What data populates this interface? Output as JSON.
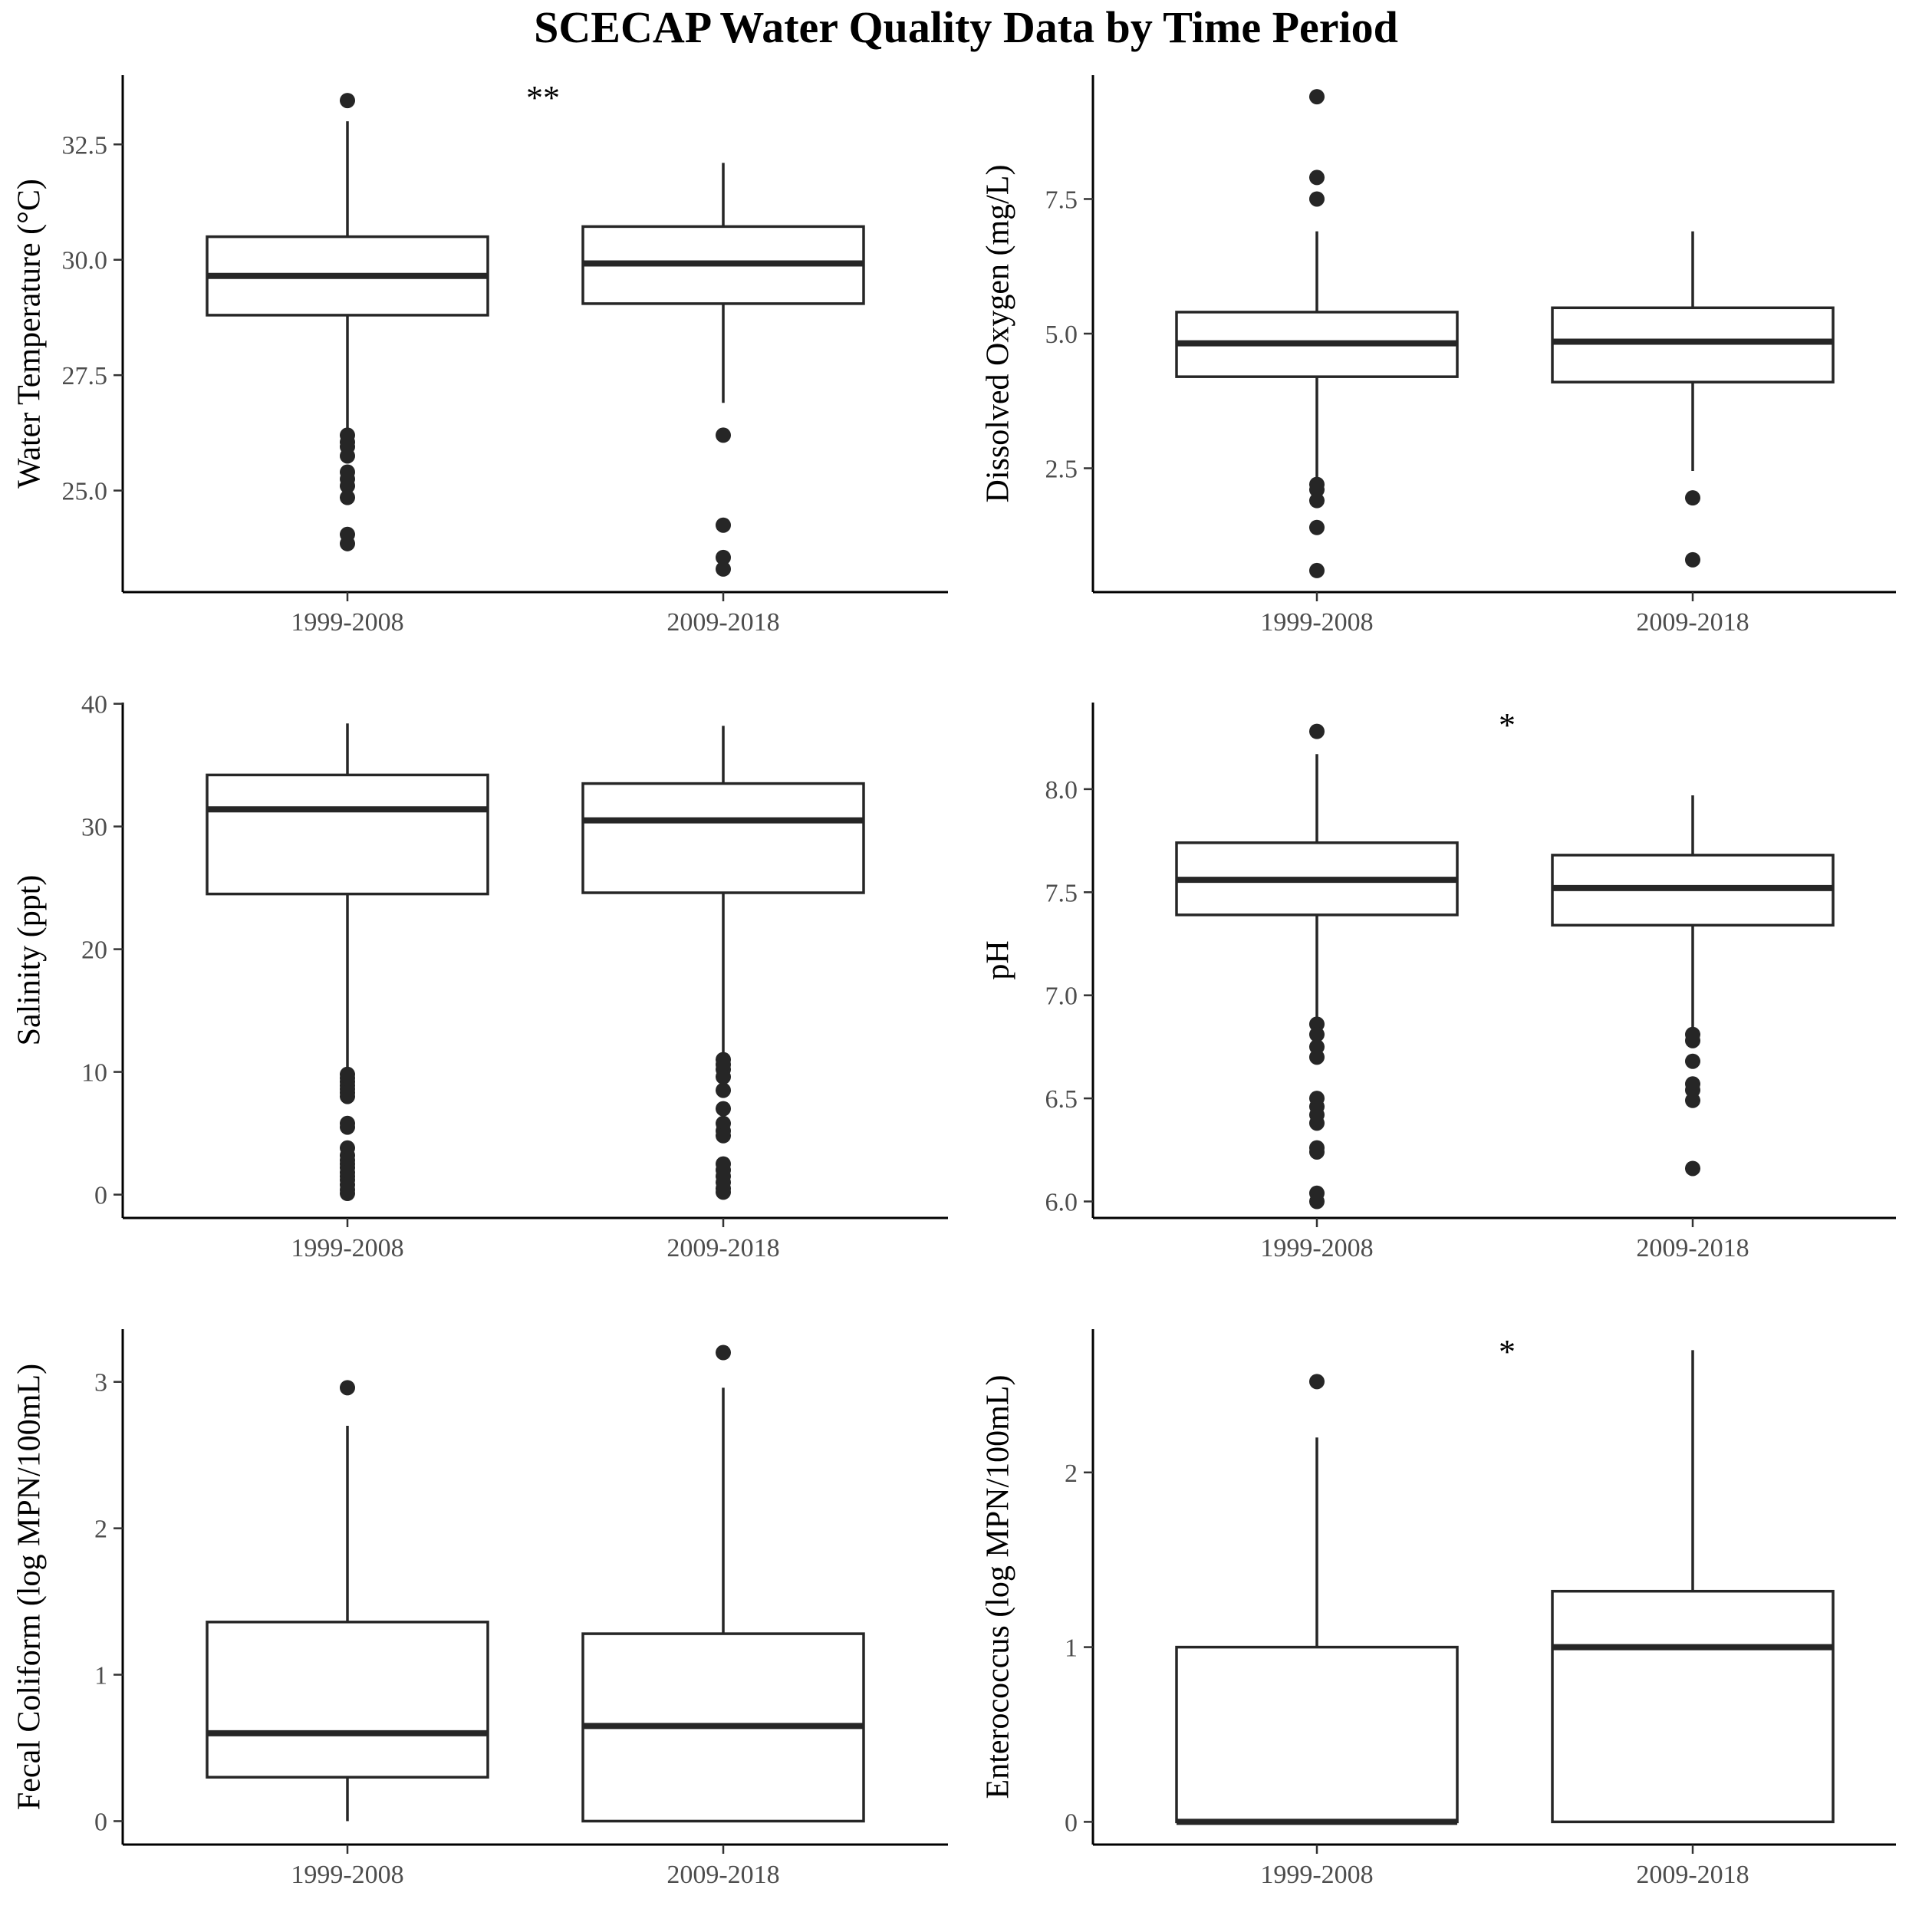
{
  "title": "SCECAP Water Quality Data by Time Period",
  "chart_data": [
    {
      "type": "boxplot",
      "ylabel": "Water Temperature (°C)",
      "categories": [
        "1999-2008",
        "2009-2018"
      ],
      "ylim": [
        22.8,
        34.0
      ],
      "yticks": [
        "25.0",
        "27.5",
        "30.0",
        "32.5"
      ],
      "annotation": "**",
      "boxes": [
        {
          "category": "1999-2008",
          "q1": 28.8,
          "median": 29.65,
          "q3": 30.5,
          "whisker_low": 26.3,
          "whisker_high": 33.0,
          "outliers": [
            33.45,
            26.2,
            26.05,
            25.95,
            25.75,
            25.4,
            25.25,
            25.1,
            24.85,
            24.05,
            23.85
          ]
        },
        {
          "category": "2009-2018",
          "q1": 29.05,
          "median": 29.92,
          "q3": 30.72,
          "whisker_low": 26.9,
          "whisker_high": 32.1,
          "outliers": [
            26.2,
            24.25,
            23.55,
            23.3
          ]
        }
      ]
    },
    {
      "type": "boxplot",
      "ylabel": "Dissolved Oxygen (mg/L)",
      "categories": [
        "1999-2008",
        "2009-2018"
      ],
      "ylim": [
        0.2,
        9.8
      ],
      "yticks": [
        "2.5",
        "5.0",
        "7.5"
      ],
      "annotation": "",
      "boxes": [
        {
          "category": "1999-2008",
          "q1": 4.2,
          "median": 4.82,
          "q3": 5.4,
          "whisker_low": 2.3,
          "whisker_high": 6.9,
          "outliers": [
            9.4,
            7.9,
            7.5,
            2.2,
            2.1,
            1.9,
            1.4,
            0.6
          ]
        },
        {
          "category": "2009-2018",
          "q1": 4.1,
          "median": 4.85,
          "q3": 5.48,
          "whisker_low": 2.45,
          "whisker_high": 6.9,
          "outliers": [
            1.95,
            0.8
          ]
        }
      ]
    },
    {
      "type": "boxplot",
      "ylabel": "Salinity (ppt)",
      "categories": [
        "1999-2008",
        "2009-2018"
      ],
      "ylim": [
        -1.9,
        40.1
      ],
      "yticks": [
        "0",
        "10",
        "20",
        "30",
        "40"
      ],
      "annotation": "",
      "boxes": [
        {
          "category": "1999-2008",
          "q1": 24.5,
          "median": 31.4,
          "q3": 34.2,
          "whisker_low": 10.0,
          "whisker_high": 38.4,
          "outliers": [
            9.8,
            9.5,
            9.2,
            8.9,
            8.6,
            8.3,
            8.0,
            5.8,
            5.5,
            3.8,
            3.2,
            2.8,
            2.5,
            2.2,
            1.8,
            1.5,
            1.2,
            0.8,
            0.4,
            0.1
          ]
        },
        {
          "category": "2009-2018",
          "q1": 24.6,
          "median": 30.5,
          "q3": 33.5,
          "whisker_low": 11.5,
          "whisker_high": 38.2,
          "outliers": [
            11.0,
            10.6,
            10.2,
            9.6,
            8.5,
            7.0,
            5.8,
            5.2,
            4.8,
            2.5,
            2.0,
            1.5,
            1.0,
            0.5,
            0.2
          ]
        }
      ]
    },
    {
      "type": "boxplot",
      "ylabel": "pH",
      "categories": [
        "1999-2008",
        "2009-2018"
      ],
      "ylim": [
        5.92,
        8.42
      ],
      "yticks": [
        "6.0",
        "6.5",
        "7.0",
        "7.5",
        "8.0"
      ],
      "annotation": "*",
      "boxes": [
        {
          "category": "1999-2008",
          "q1": 7.39,
          "median": 7.56,
          "q3": 7.74,
          "whisker_low": 6.88,
          "whisker_high": 8.17,
          "outliers": [
            8.28,
            6.86,
            6.81,
            6.75,
            6.7,
            6.5,
            6.46,
            6.42,
            6.38,
            6.26,
            6.24,
            6.04,
            6.0
          ]
        },
        {
          "category": "2009-2018",
          "q1": 7.34,
          "median": 7.52,
          "q3": 7.68,
          "whisker_low": 6.83,
          "whisker_high": 7.97,
          "outliers": [
            6.81,
            6.78,
            6.68,
            6.57,
            6.54,
            6.49,
            6.16
          ]
        }
      ]
    },
    {
      "type": "boxplot",
      "ylabel": "Fecal Coliform (log MPN/100mL)",
      "categories": [
        "1999-2008",
        "2009-2018"
      ],
      "ylim": [
        -0.16,
        3.36
      ],
      "yticks": [
        "0",
        "1",
        "2",
        "3"
      ],
      "annotation": "",
      "boxes": [
        {
          "category": "1999-2008",
          "q1": 0.3,
          "median": 0.6,
          "q3": 1.36,
          "whisker_low": 0.0,
          "whisker_high": 2.7,
          "outliers": [
            2.96
          ]
        },
        {
          "category": "2009-2018",
          "q1": 0.0,
          "median": 0.65,
          "q3": 1.28,
          "whisker_low": 0.0,
          "whisker_high": 2.96,
          "outliers": [
            3.2
          ]
        }
      ]
    },
    {
      "type": "boxplot",
      "ylabel": "Enterococcus (log MPN/100mL)",
      "categories": [
        "1999-2008",
        "2009-2018"
      ],
      "ylim": [
        -0.13,
        2.82
      ],
      "yticks": [
        "0",
        "1",
        "2"
      ],
      "annotation": "*",
      "boxes": [
        {
          "category": "1999-2008",
          "q1": 0.0,
          "median": 0.0,
          "q3": 1.0,
          "whisker_low": 0.0,
          "whisker_high": 2.2,
          "outliers": [
            2.52
          ]
        },
        {
          "category": "2009-2018",
          "q1": 0.0,
          "median": 1.0,
          "q3": 1.32,
          "whisker_low": 0.0,
          "whisker_high": 2.7,
          "outliers": []
        }
      ]
    }
  ]
}
